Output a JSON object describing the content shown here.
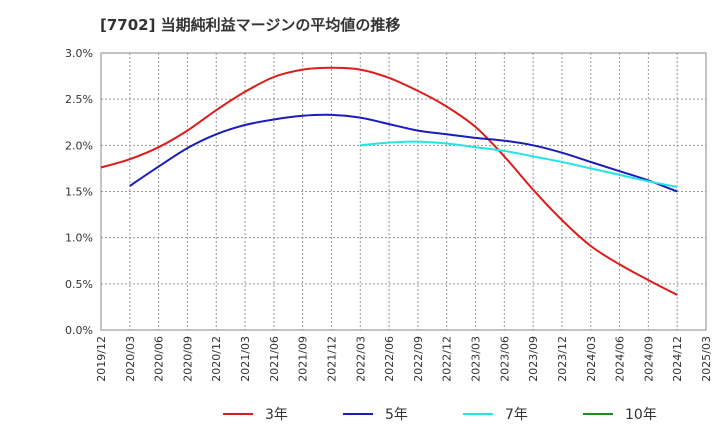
{
  "title": "[7702]  当期純利益マージンの平均値の推移",
  "chart_data": {
    "type": "line",
    "x": [
      "2019/12",
      "2020/03",
      "2020/06",
      "2020/09",
      "2020/12",
      "2021/03",
      "2021/06",
      "2021/09",
      "2021/12",
      "2022/03",
      "2022/06",
      "2022/09",
      "2022/12",
      "2023/03",
      "2023/06",
      "2023/09",
      "2023/12",
      "2024/03",
      "2024/06",
      "2024/09",
      "2024/12",
      "2025/03"
    ],
    "ylim": [
      0,
      3.0
    ],
    "yticks": [
      "0.0%",
      "0.5%",
      "1.0%",
      "1.5%",
      "2.0%",
      "2.5%",
      "3.0%"
    ],
    "grid": true,
    "legend_position": "bottom",
    "series": [
      {
        "name": "3年",
        "color": "#dd1c1c",
        "values": [
          1.76,
          1.85,
          1.98,
          2.16,
          2.38,
          2.58,
          2.74,
          2.82,
          2.84,
          2.82,
          2.73,
          2.59,
          2.42,
          2.2,
          1.88,
          1.52,
          1.19,
          0.91,
          0.71,
          0.54,
          0.38,
          null
        ]
      },
      {
        "name": "5年",
        "color": "#1c1cbb",
        "values": [
          null,
          1.56,
          1.77,
          1.97,
          2.12,
          2.22,
          2.28,
          2.32,
          2.33,
          2.3,
          2.23,
          2.16,
          2.12,
          2.08,
          2.05,
          2.0,
          1.92,
          1.82,
          1.72,
          1.62,
          1.5,
          null
        ]
      },
      {
        "name": "7年",
        "color": "#22e5e5",
        "values": [
          null,
          null,
          null,
          null,
          null,
          null,
          null,
          null,
          null,
          2.0,
          2.03,
          2.04,
          2.02,
          1.98,
          1.94,
          1.88,
          1.82,
          1.75,
          1.68,
          1.61,
          1.55,
          null
        ]
      },
      {
        "name": "10年",
        "color": "#1d8a1d",
        "values": [
          null,
          null,
          null,
          null,
          null,
          null,
          null,
          null,
          null,
          null,
          null,
          null,
          null,
          null,
          null,
          null,
          null,
          null,
          null,
          null,
          null,
          null
        ]
      }
    ]
  }
}
